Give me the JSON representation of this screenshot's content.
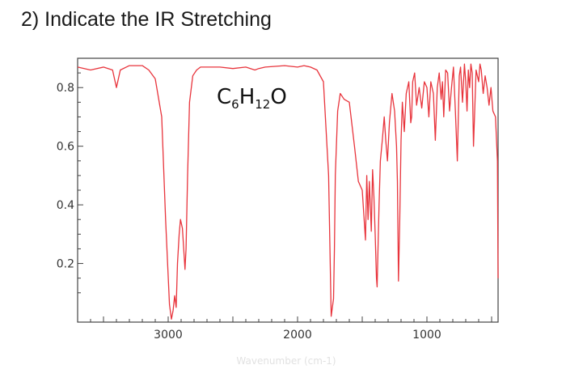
{
  "question": {
    "text": "2) Indicate the IR Stretching"
  },
  "chart_data": {
    "type": "line",
    "title": "",
    "annotation": {
      "formula_base": [
        "C",
        "H",
        "O"
      ],
      "formula_subs": [
        "6",
        "12",
        ""
      ]
    },
    "xlabel": "Wavenumber (cm-1)",
    "ylabel": "",
    "x_reversed": true,
    "xlim": [
      3700,
      450
    ],
    "ylim": [
      0,
      0.9
    ],
    "x_ticks": [
      3000,
      2000,
      1000
    ],
    "x_tick_labels": [
      "3000",
      "2000",
      "1000"
    ],
    "y_ticks": [
      0.2,
      0.4,
      0.6,
      0.8
    ],
    "y_tick_labels": [
      "0.2",
      "0.4",
      "0.6",
      "0.8"
    ],
    "grid": false,
    "line_color": "#e8343c",
    "series": [
      {
        "name": "",
        "x": [
          3700,
          3600,
          3500,
          3430,
          3400,
          3370,
          3300,
          3200,
          3150,
          3100,
          3050,
          3020,
          2990,
          2975,
          2962,
          2950,
          2938,
          2928,
          2915,
          2905,
          2890,
          2870,
          2862,
          2850,
          2835,
          2810,
          2780,
          2750,
          2700,
          2600,
          2500,
          2400,
          2330,
          2300,
          2250,
          2100,
          2000,
          1950,
          1900,
          1850,
          1800,
          1760,
          1740,
          1722,
          1715,
          1708,
          1690,
          1670,
          1640,
          1600,
          1560,
          1530,
          1500,
          1475,
          1465,
          1455,
          1445,
          1430,
          1420,
          1410,
          1400,
          1390,
          1385,
          1378,
          1370,
          1360,
          1345,
          1330,
          1318,
          1305,
          1290,
          1270,
          1250,
          1235,
          1228,
          1220,
          1210,
          1200,
          1190,
          1175,
          1160,
          1140,
          1125,
          1118,
          1110,
          1095,
          1080,
          1060,
          1040,
          1020,
          1000,
          985,
          970,
          950,
          935,
          920,
          905,
          890,
          880,
          870,
          855,
          840,
          825,
          810,
          795,
          780,
          765,
          750,
          740,
          725,
          710,
          700,
          690,
          680,
          670,
          660,
          650,
          640,
          620,
          600,
          590,
          580,
          565,
          550,
          535,
          520,
          505,
          490,
          470,
          455,
          450
        ],
        "y": [
          0.87,
          0.86,
          0.87,
          0.86,
          0.8,
          0.86,
          0.875,
          0.875,
          0.86,
          0.83,
          0.7,
          0.35,
          0.06,
          0.01,
          0.04,
          0.09,
          0.05,
          0.2,
          0.3,
          0.35,
          0.32,
          0.18,
          0.25,
          0.5,
          0.75,
          0.84,
          0.86,
          0.87,
          0.87,
          0.87,
          0.865,
          0.87,
          0.86,
          0.865,
          0.87,
          0.875,
          0.87,
          0.875,
          0.87,
          0.86,
          0.82,
          0.5,
          0.02,
          0.08,
          0.25,
          0.5,
          0.72,
          0.78,
          0.76,
          0.75,
          0.6,
          0.48,
          0.45,
          0.28,
          0.5,
          0.35,
          0.48,
          0.31,
          0.52,
          0.43,
          0.3,
          0.15,
          0.12,
          0.25,
          0.4,
          0.55,
          0.62,
          0.7,
          0.62,
          0.55,
          0.68,
          0.78,
          0.72,
          0.6,
          0.48,
          0.14,
          0.35,
          0.62,
          0.75,
          0.65,
          0.78,
          0.82,
          0.68,
          0.7,
          0.82,
          0.85,
          0.74,
          0.8,
          0.73,
          0.82,
          0.8,
          0.7,
          0.82,
          0.78,
          0.62,
          0.8,
          0.85,
          0.76,
          0.82,
          0.7,
          0.86,
          0.85,
          0.72,
          0.8,
          0.87,
          0.72,
          0.55,
          0.84,
          0.87,
          0.75,
          0.88,
          0.82,
          0.72,
          0.86,
          0.8,
          0.88,
          0.85,
          0.6,
          0.86,
          0.82,
          0.88,
          0.86,
          0.78,
          0.84,
          0.8,
          0.74,
          0.8,
          0.72,
          0.7,
          0.55,
          0.15
        ]
      }
    ]
  }
}
